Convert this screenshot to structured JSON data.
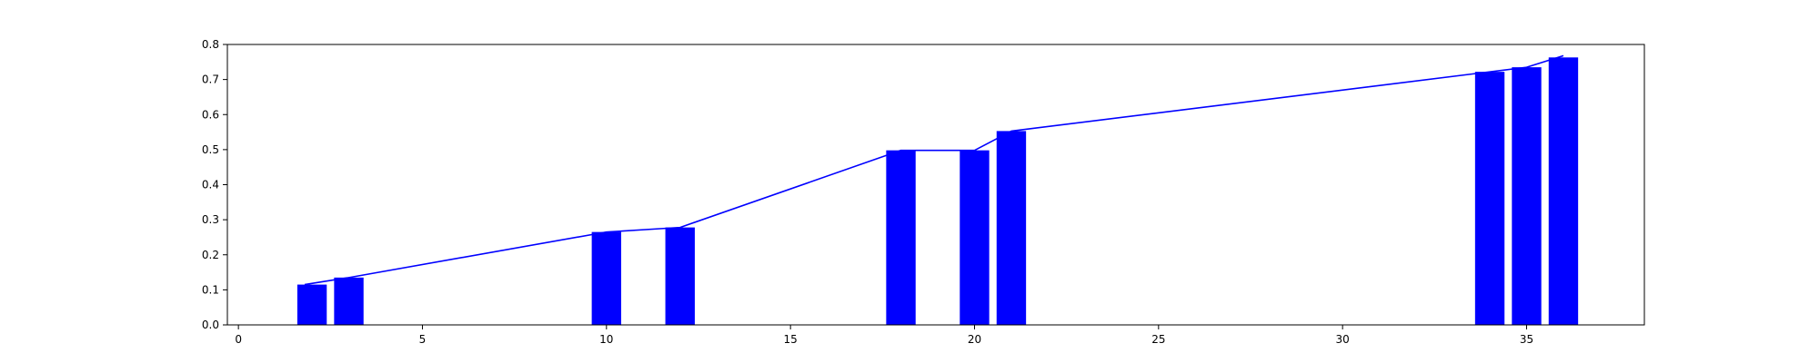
{
  "chart_data": {
    "type": "bar",
    "title": "",
    "xlabel": "",
    "ylabel": "",
    "xlim": [
      -0.3,
      38.2
    ],
    "ylim": [
      0,
      0.8
    ],
    "grid": false,
    "bar_color": "#0000ff",
    "line_color": "#0000ff",
    "bar_width": 0.8,
    "x_ticks": [
      0,
      5,
      10,
      15,
      20,
      25,
      30,
      35
    ],
    "y_ticks": [
      0.0,
      0.1,
      0.2,
      0.3,
      0.4,
      0.5,
      0.6,
      0.7,
      0.8
    ],
    "x_tick_labels": [
      "0",
      "5",
      "10",
      "15",
      "20",
      "25",
      "30",
      "35"
    ],
    "y_tick_labels": [
      "0.0",
      "0.1",
      "0.2",
      "0.3",
      "0.4",
      "0.5",
      "0.6",
      "0.7",
      "0.8"
    ],
    "bars": [
      {
        "x": 2,
        "y": 0.115
      },
      {
        "x": 3,
        "y": 0.135
      },
      {
        "x": 10,
        "y": 0.265
      },
      {
        "x": 12,
        "y": 0.278
      },
      {
        "x": 18,
        "y": 0.498
      },
      {
        "x": 20,
        "y": 0.498
      },
      {
        "x": 21,
        "y": 0.553
      },
      {
        "x": 34,
        "y": 0.722
      },
      {
        "x": 35,
        "y": 0.735
      },
      {
        "x": 36,
        "y": 0.763
      }
    ],
    "line": [
      {
        "x": 1.8,
        "y": 0.115
      },
      {
        "x": 3,
        "y": 0.135
      },
      {
        "x": 10,
        "y": 0.265
      },
      {
        "x": 12,
        "y": 0.278
      },
      {
        "x": 18,
        "y": 0.498
      },
      {
        "x": 20,
        "y": 0.498
      },
      {
        "x": 21,
        "y": 0.553
      },
      {
        "x": 34,
        "y": 0.722
      },
      {
        "x": 35,
        "y": 0.735
      },
      {
        "x": 36,
        "y": 0.768
      }
    ]
  }
}
